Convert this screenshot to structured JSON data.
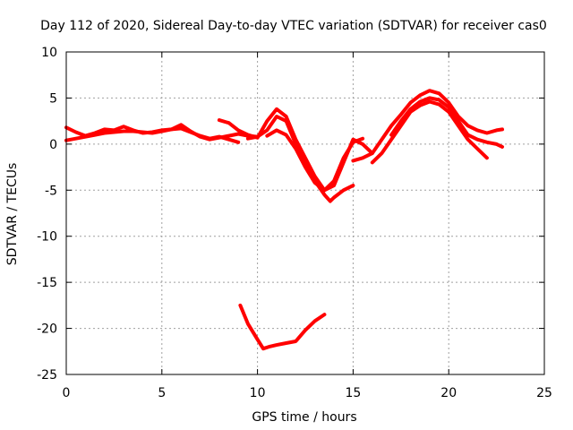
{
  "chart_data": {
    "type": "line",
    "title": "Day 112 of 2020, Sidereal Day-to-day VTEC variation (SDTVAR) for receiver cas0",
    "xlabel": "GPS time / hours",
    "ylabel": "SDTVAR / TECUs",
    "xlim": [
      0,
      25
    ],
    "ylim": [
      -25,
      10
    ],
    "xticks": [
      0,
      5,
      10,
      15,
      20,
      25
    ],
    "yticks": [
      -25,
      -20,
      -15,
      -10,
      -5,
      0,
      5,
      10
    ],
    "xtick_labels": [
      "0",
      "5",
      "10",
      "15",
      "20",
      "25"
    ],
    "ytick_labels": [
      "-25",
      "-20",
      "-15",
      "-10",
      "-5",
      "0",
      "5",
      "10"
    ],
    "grid": true,
    "legend": false,
    "series_color": "#ff0000",
    "series": [
      {
        "name": "track-1",
        "x": [
          0.0,
          0.5,
          1.0,
          1.5,
          2.0,
          2.5,
          3.0,
          3.5,
          4.0,
          4.5,
          5.0,
          5.5,
          6.0,
          6.5,
          7.0,
          7.5,
          8.0,
          8.5,
          9.0,
          9.5,
          10.0
        ],
        "y": [
          1.8,
          1.3,
          0.9,
          1.2,
          1.6,
          1.5,
          1.9,
          1.5,
          1.2,
          1.3,
          1.5,
          1.6,
          2.1,
          1.4,
          0.8,
          0.5,
          0.7,
          0.9,
          1.1,
          0.9,
          0.8
        ]
      },
      {
        "name": "track-2",
        "x": [
          0.0,
          0.5,
          1.0,
          1.5,
          2.0,
          2.5,
          3.0,
          3.5,
          4.0,
          4.5,
          5.0,
          5.5,
          6.0,
          6.5,
          7.0,
          7.5,
          8.0,
          8.5,
          9.0
        ],
        "y": [
          0.4,
          0.6,
          0.8,
          1.0,
          1.2,
          1.3,
          1.4,
          1.4,
          1.3,
          1.2,
          1.4,
          1.6,
          1.7,
          1.3,
          0.9,
          0.6,
          0.8,
          0.5,
          0.2
        ]
      },
      {
        "name": "track-3",
        "x": [
          8.0,
          8.5,
          9.0,
          9.5,
          10.0,
          10.5,
          11.0,
          11.5,
          12.0,
          12.5,
          13.0,
          13.5,
          14.0,
          14.5,
          15.0,
          15.5,
          16.0
        ],
        "y": [
          2.6,
          2.3,
          1.5,
          1.0,
          0.7,
          2.5,
          3.8,
          3.0,
          0.5,
          -1.5,
          -3.5,
          -5.0,
          -4.5,
          -2.0,
          0.5,
          0.0,
          -1.0
        ]
      },
      {
        "name": "track-4",
        "x": [
          9.5,
          10.0,
          10.5,
          11.0,
          11.5,
          12.0,
          12.5,
          13.0,
          13.5,
          13.8,
          14.0,
          14.5,
          15.0
        ],
        "y": [
          0.6,
          0.8,
          1.5,
          3.0,
          2.5,
          0.0,
          -2.0,
          -4.0,
          -5.5,
          -6.2,
          -5.8,
          -5.0,
          -4.5
        ]
      },
      {
        "name": "track-5",
        "x": [
          10.5,
          11.0,
          11.5,
          12.0,
          12.5,
          13.0,
          13.5,
          14.0,
          14.5,
          15.0,
          15.5
        ],
        "y": [
          0.9,
          1.5,
          1.0,
          -0.5,
          -2.5,
          -4.2,
          -5.0,
          -4.0,
          -1.5,
          0.2,
          0.6
        ]
      },
      {
        "name": "track-6",
        "x": [
          15.0,
          15.5,
          16.0,
          16.5,
          17.0,
          17.5,
          18.0,
          18.5,
          19.0,
          19.5,
          20.0,
          20.5,
          21.0,
          21.5,
          22.0,
          22.5,
          22.8
        ],
        "y": [
          -1.8,
          -1.5,
          -1.0,
          0.5,
          2.0,
          3.2,
          4.5,
          5.3,
          5.8,
          5.5,
          4.5,
          3.0,
          2.0,
          1.5,
          1.2,
          1.5,
          1.6
        ]
      },
      {
        "name": "track-7",
        "x": [
          16.0,
          16.5,
          17.0,
          17.5,
          18.0,
          18.5,
          19.0,
          19.5,
          20.0,
          20.5,
          21.0,
          21.5,
          22.0
        ],
        "y": [
          -2.0,
          -1.0,
          0.5,
          2.0,
          3.5,
          4.2,
          4.6,
          4.3,
          3.5,
          2.0,
          0.5,
          -0.5,
          -1.5
        ]
      },
      {
        "name": "track-8",
        "x": [
          17.0,
          17.5,
          18.0,
          18.5,
          19.0,
          19.5,
          20.0,
          20.5,
          21.0,
          21.5,
          22.0,
          22.5,
          22.8
        ],
        "y": [
          1.0,
          2.5,
          3.8,
          4.6,
          5.0,
          4.8,
          4.0,
          2.5,
          1.0,
          0.5,
          0.2,
          0.0,
          -0.3
        ]
      },
      {
        "name": "track-9",
        "x": [
          9.1,
          9.5,
          10.0,
          10.3,
          10.6,
          11.0,
          11.5,
          12.0,
          12.5,
          13.0,
          13.5
        ],
        "y": [
          -17.5,
          -19.5,
          -21.2,
          -22.2,
          -22.0,
          -21.8,
          -21.6,
          -21.4,
          -20.2,
          -19.2,
          -18.5
        ]
      }
    ]
  }
}
